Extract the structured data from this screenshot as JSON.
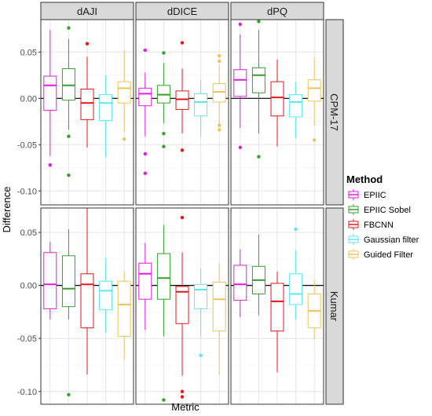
{
  "chart_data": {
    "type": "boxplot",
    "xlabel": "Metric",
    "ylabel": "Difference",
    "columns": [
      "dAJI",
      "dDICE",
      "dPQ"
    ],
    "rows": [
      "CPM-17",
      "Kumar"
    ],
    "grid": true,
    "reference_line_y": 0,
    "legend": {
      "title": "Method",
      "placement": "right",
      "entries": [
        "EPIIC",
        "EPIIC Sobel",
        "FBCNN",
        "Gaussian filter",
        "Guided Filter"
      ]
    },
    "series_colors": [
      "#e619e6",
      "#33a02c",
      "#e31a1c",
      "#5ee6ee",
      "#f0c35a"
    ],
    "panels": [
      {
        "row": "CPM-17",
        "col": "dAJI",
        "ylim": [
          -0.115,
          0.085
        ],
        "yticks": [
          0.05,
          0.0,
          -0.05,
          -0.1
        ],
        "ytick_labels": [
          "0.05",
          "0.00",
          "-0.05",
          "-0.10"
        ],
        "boxes": [
          {
            "q1": -0.013,
            "median": 0.014,
            "q3": 0.024,
            "lower": -0.062,
            "upper": 0.074,
            "outliers": [
              -0.072
            ]
          },
          {
            "q1": -0.002,
            "median": 0.014,
            "q3": 0.032,
            "lower": -0.034,
            "upper": 0.064,
            "outliers": [
              0.076,
              -0.041,
              -0.083
            ]
          },
          {
            "q1": -0.023,
            "median": -0.005,
            "q3": 0.01,
            "lower": -0.053,
            "upper": 0.045,
            "outliers": [
              0.059
            ]
          },
          {
            "q1": -0.024,
            "median": -0.005,
            "q3": 0.004,
            "lower": -0.064,
            "upper": 0.025,
            "outliers": []
          },
          {
            "q1": -0.005,
            "median": 0.011,
            "q3": 0.018,
            "lower": -0.036,
            "upper": 0.052,
            "outliers": [
              -0.044
            ]
          }
        ]
      },
      {
        "row": "CPM-17",
        "col": "dDICE",
        "ylim": [
          -0.115,
          0.085
        ],
        "yticks": [
          0.05,
          0.0,
          -0.05,
          -0.1
        ],
        "ytick_labels": [
          "0.05",
          "0.00",
          "-0.05",
          "-0.10"
        ],
        "boxes": [
          {
            "q1": -0.008,
            "median": 0.005,
            "q3": 0.011,
            "lower": -0.041,
            "upper": 0.028,
            "outliers": [
              0.052,
              -0.06,
              -0.081
            ]
          },
          {
            "q1": -0.005,
            "median": 0.004,
            "q3": 0.014,
            "lower": -0.027,
            "upper": 0.038,
            "outliers": [
              0.049,
              -0.038,
              -0.052
            ]
          },
          {
            "q1": -0.012,
            "median": -0.001,
            "q3": 0.008,
            "lower": -0.038,
            "upper": 0.032,
            "outliers": [
              0.06,
              -0.056
            ]
          },
          {
            "q1": -0.019,
            "median": -0.004,
            "q3": 0.005,
            "lower": -0.042,
            "upper": 0.02,
            "outliers": []
          },
          {
            "q1": -0.004,
            "median": 0.007,
            "q3": 0.016,
            "lower": -0.028,
            "upper": 0.036,
            "outliers": [
              0.046,
              0.04,
              -0.029,
              -0.034
            ]
          }
        ]
      },
      {
        "row": "CPM-17",
        "col": "dPQ",
        "ylim": [
          -0.115,
          0.085
        ],
        "yticks": [
          0.05,
          0.0,
          -0.05,
          -0.1
        ],
        "ytick_labels": [
          "0.05",
          "0.00",
          "-0.05",
          "-0.10"
        ],
        "boxes": [
          {
            "q1": 0.002,
            "median": 0.02,
            "q3": 0.031,
            "lower": -0.032,
            "upper": 0.069,
            "outliers": [
              0.08,
              -0.053
            ]
          },
          {
            "q1": 0.006,
            "median": 0.025,
            "q3": 0.033,
            "lower": -0.038,
            "upper": 0.074,
            "outliers": [
              0.083,
              -0.063
            ]
          },
          {
            "q1": -0.019,
            "median": 0.001,
            "q3": 0.018,
            "lower": -0.052,
            "upper": 0.042,
            "outliers": []
          },
          {
            "q1": -0.02,
            "median": -0.004,
            "q3": 0.004,
            "lower": -0.043,
            "upper": 0.018,
            "outliers": []
          },
          {
            "q1": -0.003,
            "median": 0.011,
            "q3": 0.02,
            "lower": -0.029,
            "upper": 0.044,
            "outliers": [
              -0.045
            ]
          }
        ]
      },
      {
        "row": "Kumar",
        "col": "dAJI",
        "ylim": [
          -0.112,
          0.073
        ],
        "yticks": [
          0.05,
          0.0,
          -0.05,
          -0.1
        ],
        "ytick_labels": [
          "0.05",
          "0.00",
          "-0.05",
          "-0.10"
        ],
        "boxes": [
          {
            "q1": -0.022,
            "median": 0.001,
            "q3": 0.031,
            "lower": -0.032,
            "upper": 0.041,
            "outliers": []
          },
          {
            "q1": -0.02,
            "median": -0.003,
            "q3": 0.028,
            "lower": -0.032,
            "upper": 0.053,
            "outliers": [
              -0.103
            ]
          },
          {
            "q1": -0.04,
            "median": 0.001,
            "q3": 0.011,
            "lower": -0.084,
            "upper": 0.073,
            "outliers": []
          },
          {
            "q1": -0.023,
            "median": -0.005,
            "q3": 0.004,
            "lower": -0.045,
            "upper": 0.026,
            "outliers": []
          },
          {
            "q1": -0.048,
            "median": -0.018,
            "q3": 0.004,
            "lower": -0.07,
            "upper": 0.013,
            "outliers": []
          }
        ]
      },
      {
        "row": "Kumar",
        "col": "dDICE",
        "ylim": [
          -0.112,
          0.073
        ],
        "yticks": [
          0.05,
          0.0,
          -0.05,
          -0.1
        ],
        "ytick_labels": [
          "0.05",
          "0.00",
          "-0.05",
          "-0.10"
        ],
        "boxes": [
          {
            "q1": -0.013,
            "median": 0.011,
            "q3": 0.021,
            "lower": -0.042,
            "upper": 0.04,
            "outliers": []
          },
          {
            "q1": -0.013,
            "median": 0.007,
            "q3": 0.03,
            "lower": -0.048,
            "upper": 0.057,
            "outliers": [
              -0.108
            ]
          },
          {
            "q1": -0.036,
            "median": -0.006,
            "q3": -0.001,
            "lower": -0.085,
            "upper": 0.031,
            "outliers": [
              0.064,
              -0.1,
              -0.105
            ]
          },
          {
            "q1": -0.022,
            "median": -0.004,
            "q3": 0.001,
            "lower": -0.048,
            "upper": 0.016,
            "outliers": [
              -0.066
            ]
          },
          {
            "q1": -0.043,
            "median": -0.013,
            "q3": 0.003,
            "lower": -0.084,
            "upper": 0.021,
            "outliers": []
          }
        ]
      },
      {
        "row": "Kumar",
        "col": "dPQ",
        "ylim": [
          -0.112,
          0.073
        ],
        "yticks": [
          0.05,
          0.0,
          -0.05,
          -0.1
        ],
        "ytick_labels": [
          "0.05",
          "0.00",
          "-0.05",
          "-0.10"
        ],
        "boxes": [
          {
            "q1": -0.014,
            "median": 0.001,
            "q3": 0.019,
            "lower": -0.03,
            "upper": 0.034,
            "outliers": []
          },
          {
            "q1": -0.008,
            "median": 0.005,
            "q3": 0.018,
            "lower": -0.028,
            "upper": 0.048,
            "outliers": []
          },
          {
            "q1": -0.043,
            "median": -0.015,
            "q3": 0.002,
            "lower": -0.082,
            "upper": 0.013,
            "outliers": []
          },
          {
            "q1": -0.018,
            "median": -0.008,
            "q3": 0.011,
            "lower": -0.032,
            "upper": 0.033,
            "outliers": [
              0.053
            ]
          },
          {
            "q1": -0.04,
            "median": -0.024,
            "q3": -0.008,
            "lower": -0.051,
            "upper": 0.005,
            "outliers": []
          }
        ]
      }
    ]
  }
}
